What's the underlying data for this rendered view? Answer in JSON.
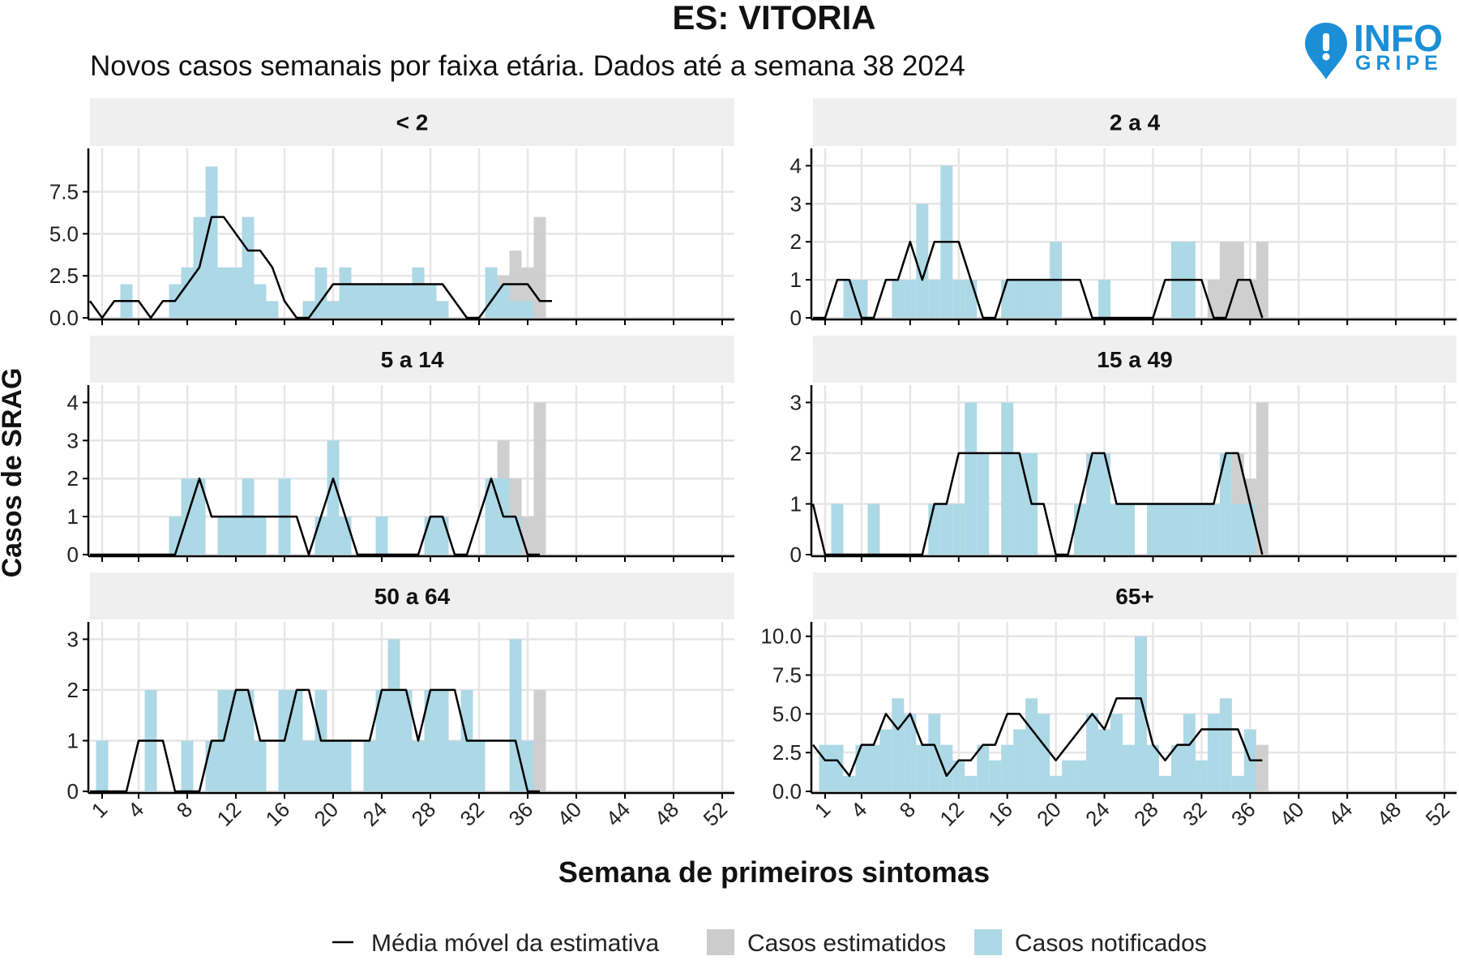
{
  "header": {
    "title": "ES: VITORIA",
    "subtitle": "Novos casos semanais por faixa etária. Dados até a semana 38 2024"
  },
  "logo": {
    "line1": "INFO",
    "line2": "GRIPE",
    "color": "#1b8fd6"
  },
  "legend": {
    "moving_avg": "Média móvel da estimativa",
    "estimated": "Casos estimatidos",
    "notified": "Casos notificados"
  },
  "colors": {
    "notified": "#add8e6",
    "estimated": "#cccccc",
    "line": "#000000",
    "strip": "#efefef",
    "grid": "#e6e6e6"
  },
  "chart_data": {
    "type": "bar",
    "title": "ES: VITORIA",
    "subtitle": "Novos casos semanais por faixa etária. Dados até a semana 38 2024",
    "xlabel": "Semana de primeiros sintomas",
    "ylabel": "Casos de SRAG",
    "x_ticks": [
      1,
      4,
      8,
      12,
      16,
      20,
      24,
      28,
      32,
      36,
      40,
      44,
      48,
      52
    ],
    "xlim": [
      0,
      53
    ],
    "legend_position": "bottom",
    "grid": true,
    "facets": [
      {
        "label": "< 2",
        "ylim": [
          0,
          9.5
        ],
        "y_ticks": [
          0,
          2.5,
          5,
          7.5
        ],
        "y_tick_labels": [
          "0.0",
          "2.5",
          "5.0",
          "7.5"
        ],
        "notified": [
          0,
          0,
          2,
          0,
          0,
          0,
          2,
          3,
          6,
          9,
          3,
          3,
          6,
          2,
          1,
          0,
          0,
          1,
          3,
          1,
          3,
          2,
          2,
          2,
          2,
          2,
          3,
          2,
          1,
          0,
          0,
          0,
          3,
          2,
          1,
          1,
          0
        ],
        "estimated_upper": [
          0,
          0,
          0,
          0,
          0,
          0,
          0,
          0,
          0,
          0,
          0,
          0,
          0,
          0,
          0,
          0,
          0,
          0,
          0,
          0,
          0,
          0,
          0,
          0,
          0,
          0,
          0,
          0,
          0,
          0,
          0,
          0,
          3,
          2.5,
          4,
          3,
          6
        ],
        "moving_avg": [
          1,
          0,
          1,
          1,
          1,
          0,
          1,
          1,
          2,
          3,
          6,
          6,
          5,
          4,
          4,
          3,
          1,
          0,
          0,
          1,
          2,
          2,
          2,
          2,
          2,
          2,
          2,
          2,
          2,
          2,
          1,
          0,
          0,
          1,
          2,
          2,
          2,
          1,
          1
        ]
      },
      {
        "label": "2 a 4",
        "ylim": [
          0,
          4.2
        ],
        "y_ticks": [
          0,
          1,
          2,
          3,
          4
        ],
        "y_tick_labels": [
          "0",
          "1",
          "2",
          "3",
          "4"
        ],
        "notified": [
          0,
          0,
          1,
          1,
          0,
          0,
          1,
          1,
          3,
          1,
          4,
          1,
          1,
          0,
          0,
          1,
          1,
          1,
          1,
          2,
          0,
          0,
          0,
          1,
          0,
          0,
          0,
          0,
          0,
          2,
          2,
          0,
          0,
          0,
          0,
          0,
          0
        ],
        "estimated_upper": [
          0,
          0,
          0,
          0,
          0,
          0,
          0,
          0,
          0,
          0,
          0,
          0,
          0,
          0,
          0,
          0,
          0,
          0,
          0,
          0,
          0,
          0,
          0,
          0,
          0,
          0,
          0,
          0,
          0,
          0,
          0,
          0,
          1,
          2,
          2,
          1,
          2
        ],
        "moving_avg": [
          0,
          0,
          1,
          1,
          0,
          0,
          1,
          1,
          2,
          1,
          2,
          2,
          2,
          1,
          0,
          0,
          1,
          1,
          1,
          1,
          1,
          1,
          1,
          0,
          0,
          0,
          0,
          0,
          0,
          1,
          1,
          1,
          1,
          0,
          0,
          1,
          1,
          0
        ]
      },
      {
        "label": "5 a 14",
        "ylim": [
          0,
          4.2
        ],
        "y_ticks": [
          0,
          1,
          2,
          3,
          4
        ],
        "y_tick_labels": [
          "0",
          "1",
          "2",
          "3",
          "4"
        ],
        "notified": [
          0,
          0,
          0,
          0,
          0,
          0,
          1,
          2,
          2,
          0,
          1,
          1,
          2,
          1,
          0,
          2,
          0,
          0,
          1,
          3,
          1,
          0,
          0,
          1,
          0,
          0,
          0,
          1,
          1,
          0,
          0,
          0,
          2,
          2,
          1,
          0,
          0
        ],
        "estimated_upper": [
          0,
          0,
          0,
          0,
          0,
          0,
          0,
          0,
          0,
          0,
          0,
          0,
          0,
          0,
          0,
          0,
          0,
          0,
          0,
          0,
          0,
          0,
          0,
          0,
          0,
          0,
          0,
          0,
          0,
          0,
          0,
          0,
          2,
          3,
          2,
          1,
          4
        ],
        "moving_avg": [
          0,
          0,
          0,
          0,
          0,
          0,
          0,
          0,
          1,
          2,
          1,
          1,
          1,
          1,
          1,
          1,
          1,
          1,
          0,
          1,
          2,
          1,
          0,
          0,
          0,
          0,
          0,
          0,
          1,
          1,
          0,
          0,
          1,
          2,
          1,
          1,
          0,
          0
        ]
      },
      {
        "label": "15 a 49",
        "ylim": [
          0,
          3.15
        ],
        "y_ticks": [
          0,
          1,
          2,
          3
        ],
        "y_tick_labels": [
          "0",
          "1",
          "2",
          "3"
        ],
        "notified": [
          0,
          1,
          0,
          0,
          1,
          0,
          0,
          0,
          0,
          1,
          1,
          1,
          3,
          2,
          0,
          3,
          2,
          2,
          0,
          0,
          0,
          1,
          2,
          2,
          1,
          1,
          0,
          1,
          1,
          1,
          1,
          1,
          1,
          2,
          1,
          1,
          0
        ],
        "estimated_upper": [
          0,
          0,
          0,
          0,
          0,
          0,
          0,
          0,
          0,
          0,
          0,
          0,
          0,
          0,
          0,
          0,
          0,
          0,
          0,
          0,
          0,
          0,
          0,
          0,
          0,
          0,
          0,
          0,
          0,
          0,
          0,
          0,
          0,
          0,
          2,
          1.5,
          3
        ],
        "moving_avg": [
          1,
          0,
          0,
          0,
          0,
          0,
          0,
          0,
          0,
          0,
          1,
          1,
          2,
          2,
          2,
          2,
          2,
          2,
          1,
          1,
          0,
          0,
          1,
          2,
          2,
          1,
          1,
          1,
          1,
          1,
          1,
          1,
          1,
          1,
          2,
          2,
          1,
          0
        ]
      },
      {
        "label": "50 a 64",
        "ylim": [
          0,
          3.15
        ],
        "y_ticks": [
          0,
          1,
          2,
          3
        ],
        "y_tick_labels": [
          "0",
          "1",
          "2",
          "3"
        ],
        "notified": [
          1,
          0,
          0,
          0,
          2,
          0,
          0,
          1,
          0,
          1,
          2,
          2,
          2,
          1,
          0,
          2,
          2,
          1,
          2,
          1,
          1,
          0,
          1,
          2,
          3,
          2,
          1,
          2,
          2,
          1,
          2,
          1,
          0,
          0,
          3,
          1,
          0
        ],
        "estimated_upper": [
          0,
          0,
          0,
          0,
          0,
          0,
          0,
          0,
          0,
          0,
          0,
          0,
          0,
          0,
          0,
          0,
          0,
          0,
          0,
          0,
          0,
          0,
          0,
          0,
          0,
          0,
          0,
          0,
          0,
          0,
          0,
          0,
          0,
          0,
          0,
          0,
          2
        ],
        "moving_avg": [
          0,
          0,
          0,
          0,
          1,
          1,
          1,
          0,
          0,
          0,
          1,
          1,
          2,
          2,
          1,
          1,
          1,
          2,
          2,
          1,
          1,
          1,
          1,
          1,
          2,
          2,
          2,
          1,
          2,
          2,
          2,
          1,
          1,
          1,
          1,
          1,
          0,
          0
        ]
      },
      {
        "label": "65+",
        "ylim": [
          0,
          10.3
        ],
        "y_ticks": [
          0,
          2.5,
          5,
          7.5,
          10
        ],
        "y_tick_labels": [
          "0.0",
          "2.5",
          "5.0",
          "7.5",
          "10.0"
        ],
        "notified": [
          3,
          3,
          1,
          3,
          3,
          4,
          6,
          5,
          3,
          5,
          3,
          2,
          1,
          3,
          2,
          3,
          4,
          6,
          5,
          1,
          2,
          2,
          5,
          4,
          5,
          3,
          10,
          3,
          1,
          3,
          5,
          2,
          5,
          6,
          1,
          4,
          0
        ],
        "estimated_upper": [
          0,
          0,
          0,
          0,
          0,
          0,
          0,
          0,
          0,
          0,
          0,
          0,
          0,
          0,
          0,
          0,
          0,
          0,
          0,
          0,
          0,
          0,
          0,
          0,
          0,
          0,
          0,
          0,
          0,
          0,
          0,
          0,
          0,
          0,
          0,
          2,
          3
        ],
        "moving_avg": [
          3,
          2,
          2,
          1,
          3,
          3,
          5,
          4,
          5,
          3,
          3,
          1,
          2,
          2,
          3,
          3,
          5,
          5,
          4,
          3,
          2,
          3,
          4,
          5,
          4,
          6,
          6,
          6,
          3,
          2,
          3,
          3,
          4,
          4,
          4,
          4,
          2,
          2
        ]
      }
    ]
  }
}
